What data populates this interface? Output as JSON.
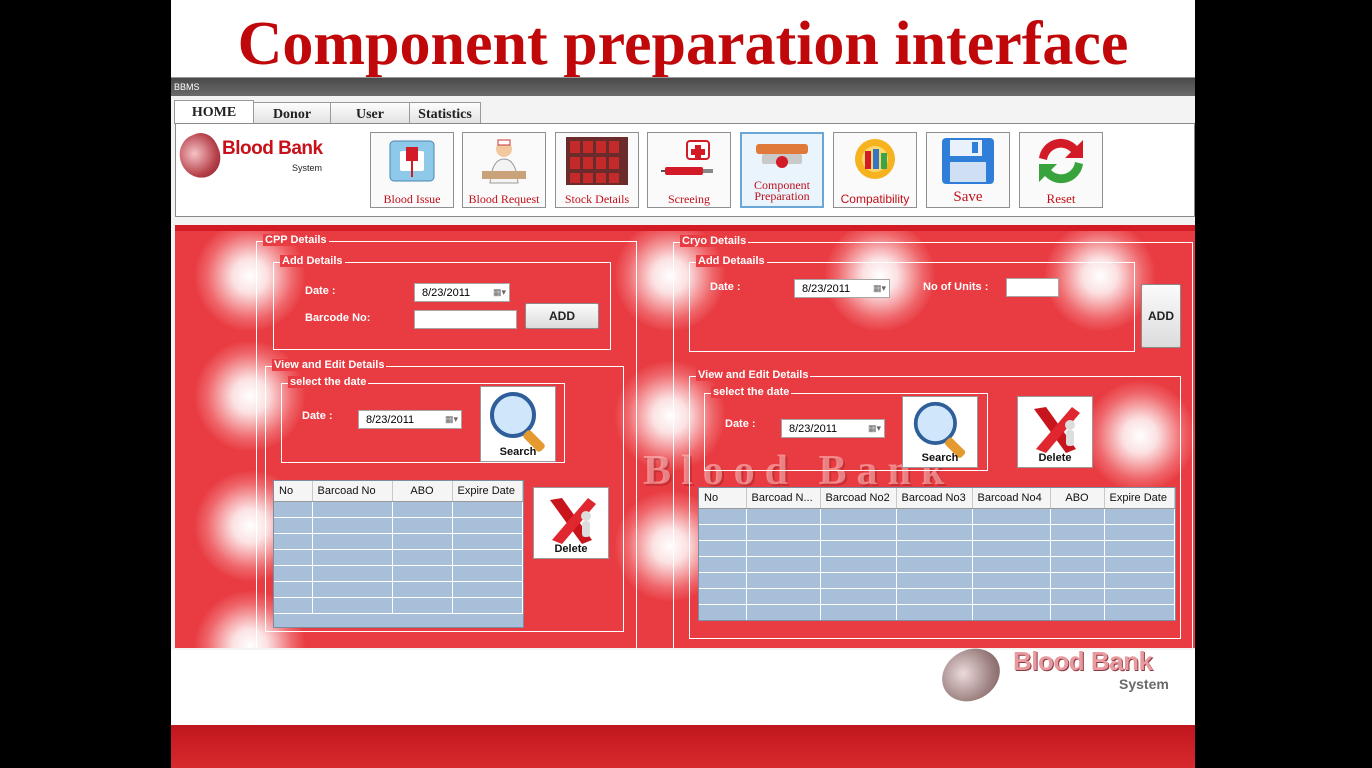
{
  "slide_title": "Component preparation interface",
  "window": {
    "title": "BBMS"
  },
  "tabs": [
    {
      "label": "HOME"
    },
    {
      "label": "Donor"
    },
    {
      "label": "User"
    },
    {
      "label": "Statistics"
    }
  ],
  "logo": {
    "title": "Blood Bank",
    "subtitle": "System"
  },
  "toolbar": [
    {
      "label": "Blood Issue",
      "icon": "blood-bag-icon"
    },
    {
      "label": "Blood Request",
      "icon": "nurse-icon"
    },
    {
      "label": "Stock Details",
      "icon": "blood-stock-icon"
    },
    {
      "label": "Screeing",
      "icon": "syringe-icon"
    },
    {
      "label": "Component Preparation",
      "icon": "centrifuge-icon"
    },
    {
      "label": "Compatibility",
      "icon": "compatibility-icon"
    },
    {
      "label": "Save",
      "icon": "floppy-disk-icon"
    },
    {
      "label": "Reset",
      "icon": "reset-arrows-icon"
    }
  ],
  "watermark": "Blood Bank",
  "cpp": {
    "title": "CPP Details",
    "add": {
      "title": "Add Details",
      "date_label": "Date :",
      "date_value": "8/23/2011",
      "barcode_label": "Barcode No:",
      "barcode_value": "",
      "add_button": "ADD"
    },
    "view": {
      "title": "View and Edit Details",
      "select_title": "select the date",
      "date_label": "Date :",
      "date_value": "8/23/2011",
      "search_button": "Search",
      "delete_button": "Delete",
      "columns": [
        "No",
        "Barcoad No",
        "ABO",
        "Expire Date"
      ]
    }
  },
  "cryo": {
    "title": "Cryo Details",
    "add": {
      "title": "Add Detaails",
      "date_label": "Date :",
      "date_value": "8/23/2011",
      "units_label": "No of Units :",
      "units_value": "",
      "add_button": "ADD"
    },
    "view": {
      "title": "View and Edit Details",
      "select_title": "select the date",
      "date_label": "Date :",
      "date_value": "8/23/2011",
      "search_button": "Search",
      "delete_button": "Delete",
      "columns": [
        "No",
        "Barcoad N...",
        "Barcoad No2",
        "Barcoad No3",
        "Barcoad No4",
        "ABO",
        "Expire Date"
      ]
    }
  },
  "footer_logo": {
    "title": "Blood Bank",
    "subtitle": "System"
  },
  "colors": {
    "brand_red": "#c0080a",
    "panel_red": "#e83c42",
    "grid_blue": "#a7bfd9"
  }
}
